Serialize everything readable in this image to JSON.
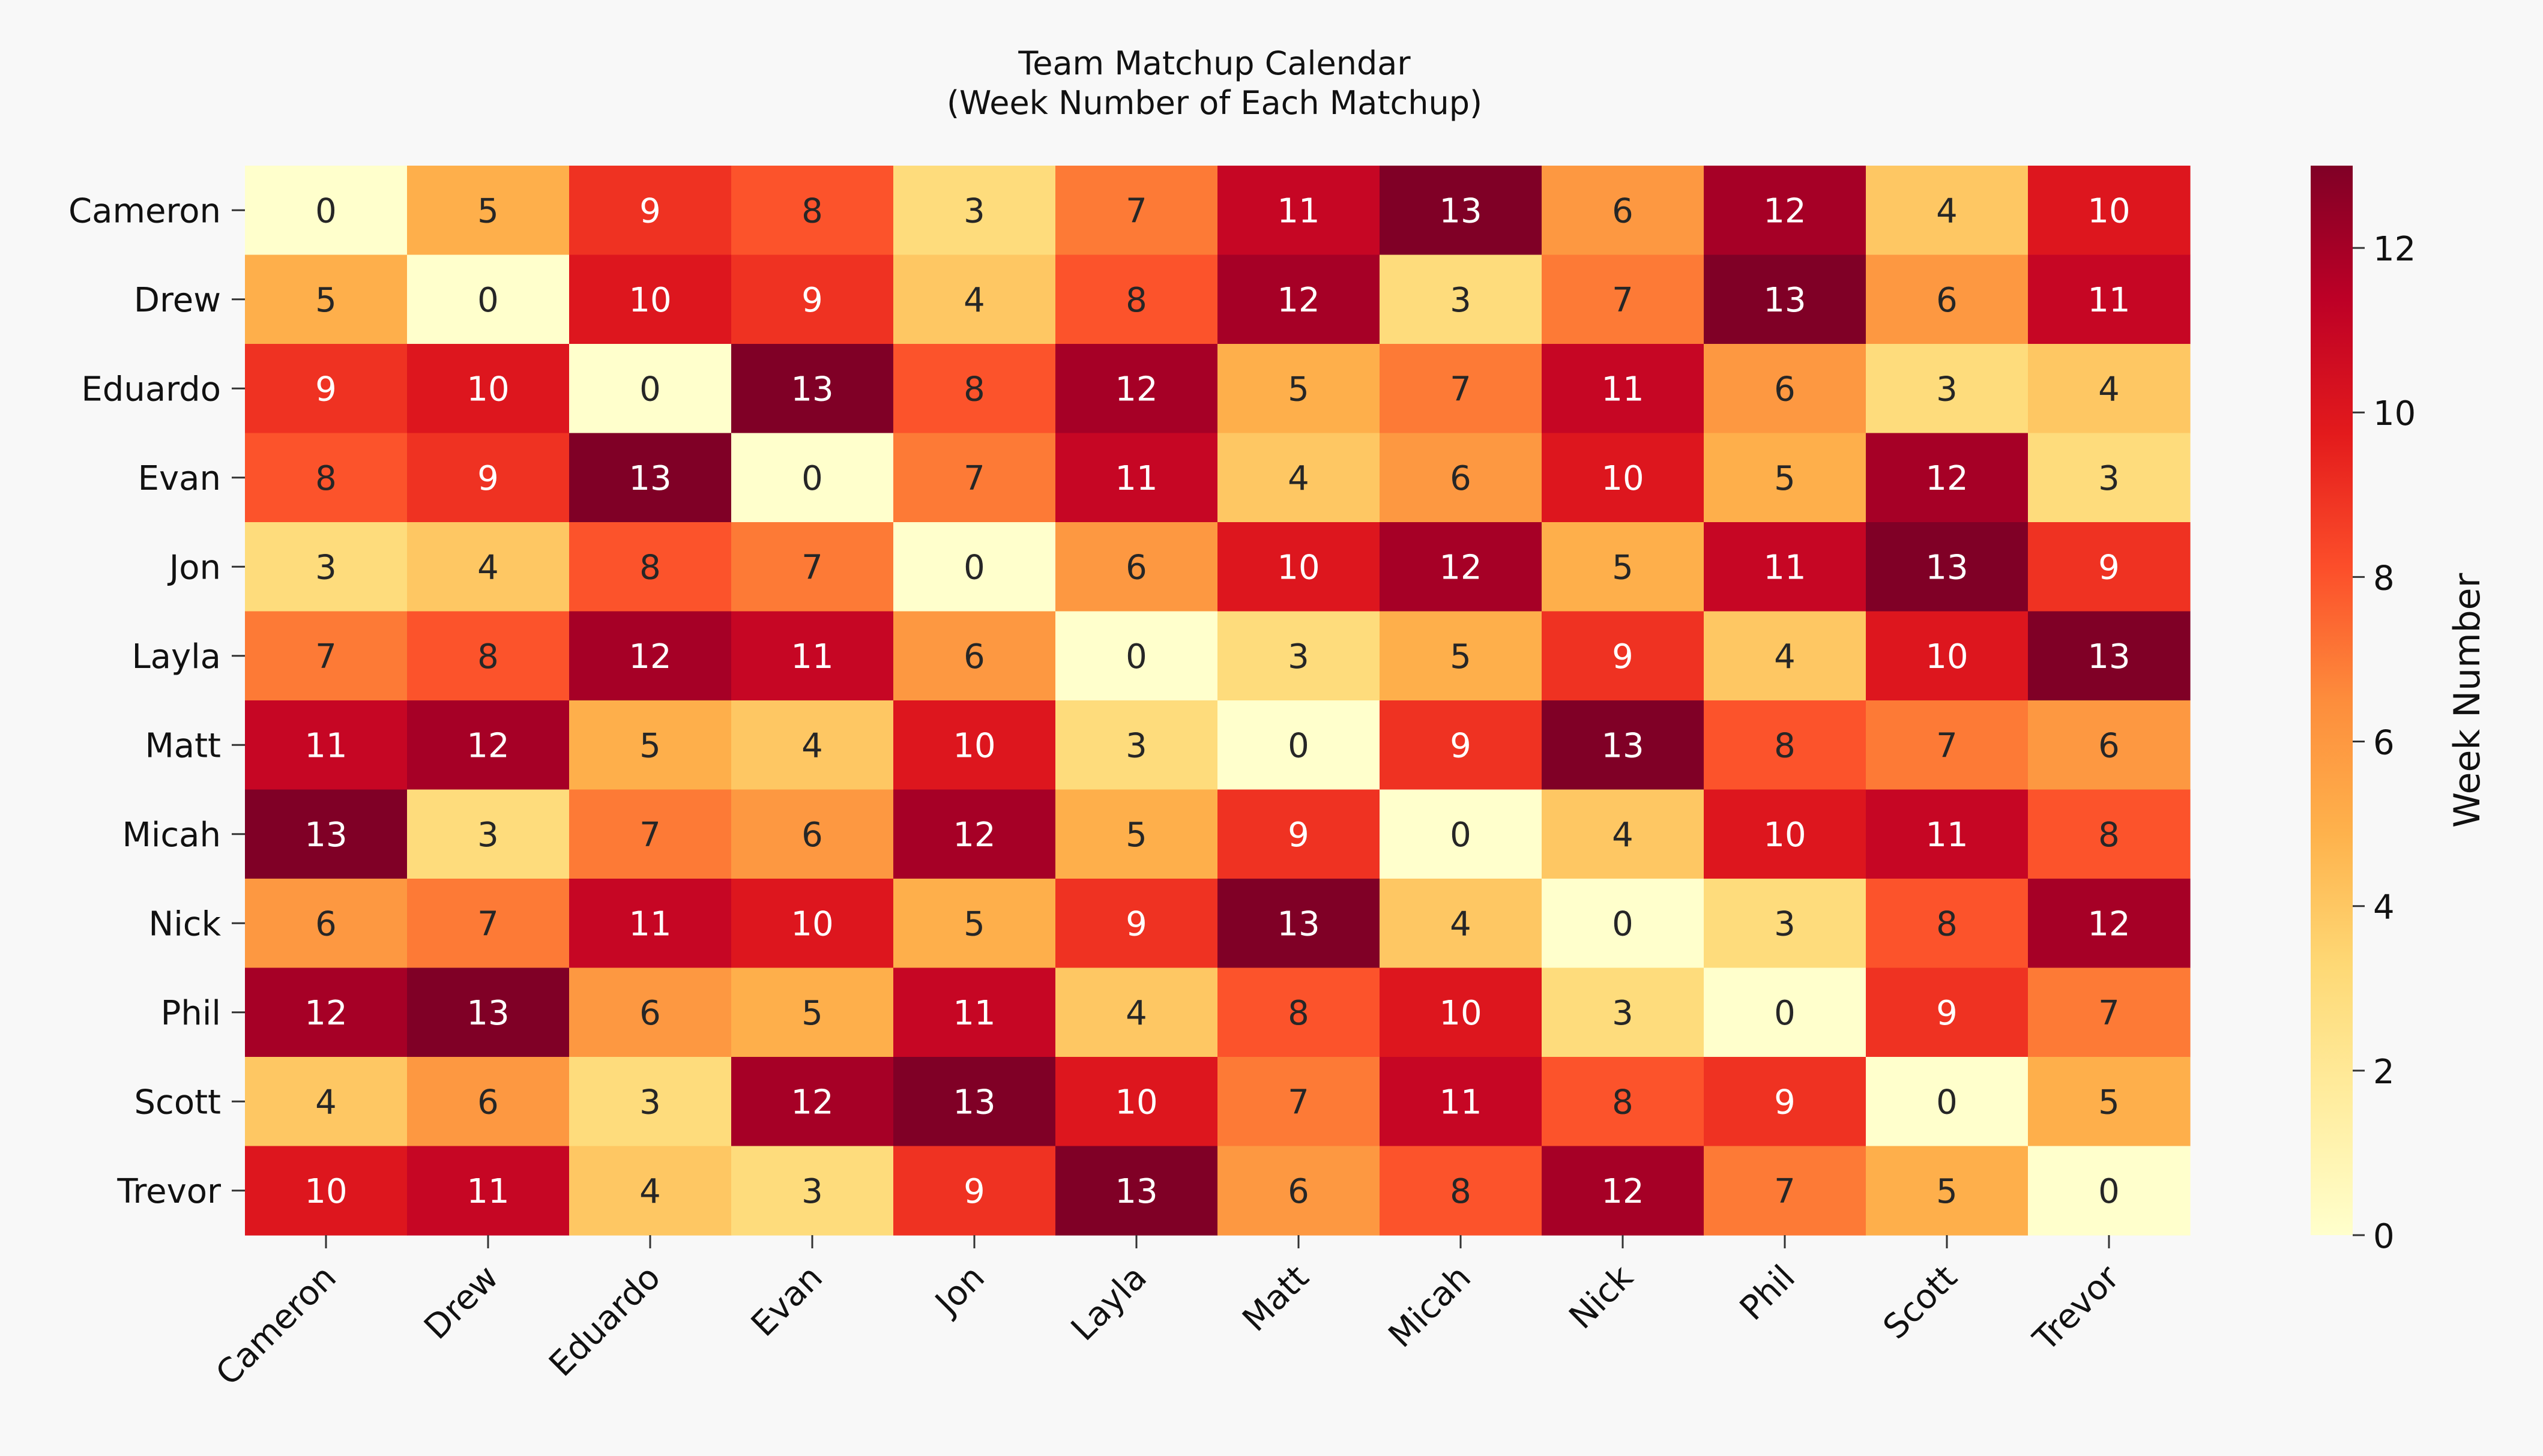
{
  "chart_data": {
    "type": "heatmap",
    "title_lines": [
      "Team Matchup Calendar",
      "(Week Number of Each Matchup)"
    ],
    "rows": [
      "Cameron",
      "Drew",
      "Eduardo",
      "Evan",
      "Jon",
      "Layla",
      "Matt",
      "Micah",
      "Nick",
      "Phil",
      "Scott",
      "Trevor"
    ],
    "columns": [
      "Cameron",
      "Drew",
      "Eduardo",
      "Evan",
      "Jon",
      "Layla",
      "Matt",
      "Micah",
      "Nick",
      "Phil",
      "Scott",
      "Trevor"
    ],
    "values": [
      [
        0,
        5,
        9,
        8,
        3,
        7,
        11,
        13,
        6,
        12,
        4,
        10
      ],
      [
        5,
        0,
        10,
        9,
        4,
        8,
        12,
        3,
        7,
        13,
        6,
        11
      ],
      [
        9,
        10,
        0,
        13,
        8,
        12,
        5,
        7,
        11,
        6,
        3,
        4
      ],
      [
        8,
        9,
        13,
        0,
        7,
        11,
        4,
        6,
        10,
        5,
        12,
        3
      ],
      [
        3,
        4,
        8,
        7,
        0,
        6,
        10,
        12,
        5,
        11,
        13,
        9
      ],
      [
        7,
        8,
        12,
        11,
        6,
        0,
        3,
        5,
        9,
        4,
        10,
        13
      ],
      [
        11,
        12,
        5,
        4,
        10,
        3,
        0,
        9,
        13,
        8,
        7,
        6
      ],
      [
        13,
        3,
        7,
        6,
        12,
        5,
        9,
        0,
        4,
        10,
        11,
        8
      ],
      [
        6,
        7,
        11,
        10,
        5,
        9,
        13,
        4,
        0,
        3,
        8,
        12
      ],
      [
        12,
        13,
        6,
        5,
        11,
        4,
        8,
        10,
        3,
        0,
        9,
        7
      ],
      [
        4,
        6,
        3,
        12,
        13,
        10,
        7,
        11,
        8,
        9,
        0,
        5
      ],
      [
        10,
        11,
        4,
        3,
        9,
        13,
        6,
        8,
        12,
        7,
        5,
        0
      ]
    ],
    "colorbar": {
      "label": "Week Number",
      "range": [
        0,
        13
      ],
      "ticks": [
        0,
        2,
        4,
        6,
        8,
        10,
        12
      ],
      "colormap": "YlOrRd",
      "colormap_stops": [
        "#ffffcc",
        "#ffeda0",
        "#fed976",
        "#feb24c",
        "#fd8d3c",
        "#fc4e2a",
        "#e31a1c",
        "#bd0026",
        "#800026"
      ]
    }
  }
}
